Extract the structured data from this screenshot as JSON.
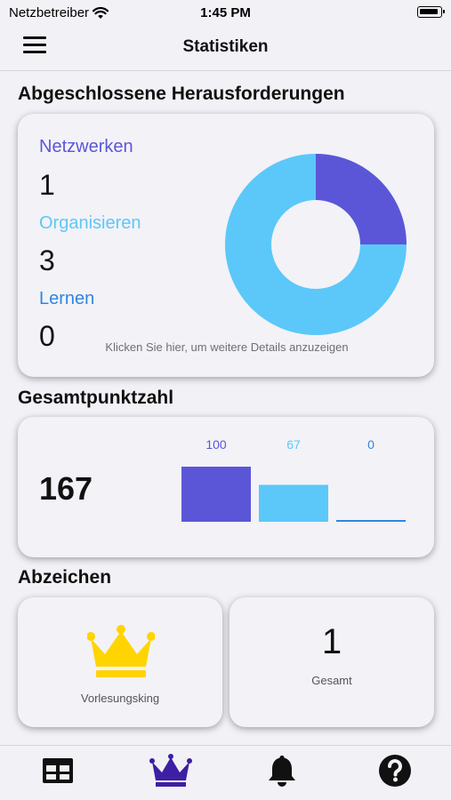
{
  "status_bar": {
    "carrier": "Netzbetreiber",
    "time": "1:45 PM"
  },
  "nav": {
    "title": "Statistiken"
  },
  "challenges": {
    "section_title": "Abgeschlossene Herausforderungen",
    "categories": [
      {
        "label": "Netzwerken",
        "value": "1",
        "color": "#5b56d8"
      },
      {
        "label": "Organisieren",
        "value": "3",
        "color": "#5bc8f9"
      },
      {
        "label": "Lernen",
        "value": "0",
        "color": "#2f86e0"
      }
    ],
    "details_hint": "Klicken Sie hier, um weitere Details anzuzeigen"
  },
  "points": {
    "section_title": "Gesamtpunktzahl",
    "total": "167"
  },
  "badges": {
    "section_title": "Abzeichen",
    "badge_name": "Vorlesungsking",
    "total_count": "1",
    "total_label": "Gesamt",
    "crown_color": "#ffd400"
  },
  "tab_bar": {
    "icons": [
      "table-icon",
      "crown-icon",
      "bell-icon",
      "help-icon"
    ],
    "active_color": "#3d1fa3",
    "inactive_color": "#111111"
  },
  "chart_data": [
    {
      "type": "pie",
      "categories": [
        "Netzwerken",
        "Organisieren",
        "Lernen"
      ],
      "values": [
        1,
        3,
        0
      ],
      "colors": [
        "#5b56d8",
        "#5bc8f9",
        "#2f86e0"
      ],
      "donut": true
    },
    {
      "type": "bar",
      "categories": [
        "Netzwerken",
        "Organisieren",
        "Lernen"
      ],
      "values": [
        100,
        67,
        0
      ],
      "data_labels": [
        "100",
        "67",
        "0"
      ],
      "colors": [
        "#5b56d8",
        "#5bc8f9",
        "#2f86e0"
      ],
      "ylim": [
        0,
        100
      ]
    }
  ]
}
